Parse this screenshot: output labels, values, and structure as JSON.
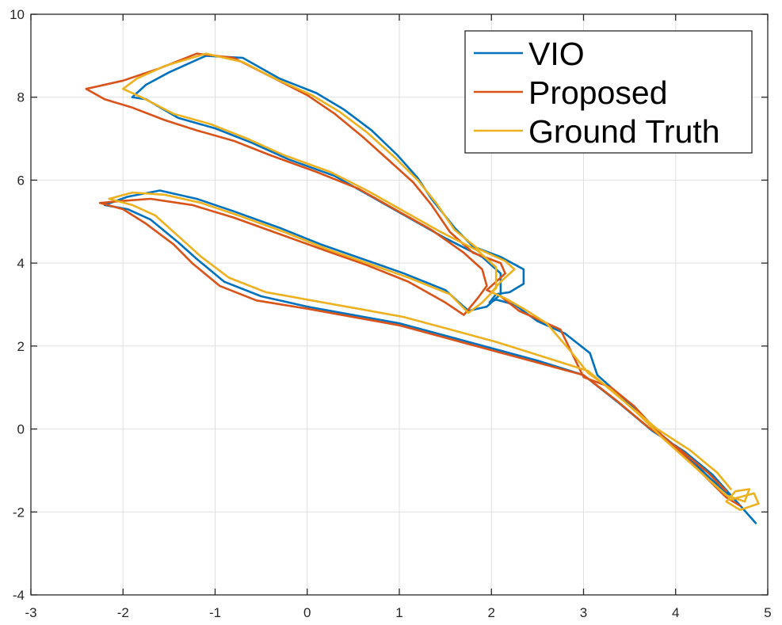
{
  "chart_data": {
    "type": "line",
    "title": "",
    "xlabel": "",
    "ylabel": "",
    "xlim": [
      -3,
      5
    ],
    "ylim": [
      -4,
      10
    ],
    "grid": true,
    "legend_position": "top-right",
    "x_ticks": [
      -3,
      -2,
      -1,
      0,
      1,
      2,
      3,
      4,
      5
    ],
    "y_ticks": [
      -4,
      -2,
      0,
      2,
      4,
      6,
      8,
      10
    ],
    "x_tick_labels": [
      "-3",
      "-2",
      "-1",
      "0",
      "1",
      "2",
      "3",
      "4",
      "5"
    ],
    "y_tick_labels": [
      "-4",
      "-2",
      "0",
      "2",
      "4",
      "6",
      "8",
      "10"
    ],
    "series": [
      {
        "name": "VIO",
        "color": "#0072BD",
        "points": [
          [
            4.87,
            -2.27
          ],
          [
            4.65,
            -1.72
          ],
          [
            4.38,
            -1.2
          ],
          [
            4.1,
            -0.6
          ],
          [
            3.85,
            -0.15
          ],
          [
            3.6,
            0.4
          ],
          [
            3.35,
            0.9
          ],
          [
            3.15,
            1.3
          ],
          [
            3.07,
            1.83
          ],
          [
            2.8,
            2.3
          ],
          [
            2.5,
            2.6
          ],
          [
            2.25,
            3.0
          ],
          [
            2.05,
            3.12
          ],
          [
            1.98,
            3.05
          ],
          [
            2.05,
            3.25
          ],
          [
            2.2,
            3.3
          ],
          [
            2.35,
            3.5
          ],
          [
            2.35,
            3.85
          ],
          [
            2.1,
            4.15
          ],
          [
            1.8,
            4.4
          ],
          [
            1.6,
            4.85
          ],
          [
            1.35,
            5.55
          ],
          [
            1.2,
            6.05
          ],
          [
            0.98,
            6.6
          ],
          [
            0.7,
            7.2
          ],
          [
            0.4,
            7.7
          ],
          [
            0.1,
            8.1
          ],
          [
            -0.3,
            8.45
          ],
          [
            -0.7,
            8.95
          ],
          [
            -1.1,
            9.0
          ],
          [
            -1.5,
            8.6
          ],
          [
            -1.75,
            8.3
          ],
          [
            -1.9,
            8.0
          ],
          [
            -1.75,
            7.95
          ],
          [
            -1.4,
            7.5
          ],
          [
            -1.0,
            7.25
          ],
          [
            -0.6,
            6.9
          ],
          [
            -0.2,
            6.5
          ],
          [
            0.3,
            6.1
          ],
          [
            0.7,
            5.6
          ],
          [
            1.1,
            5.1
          ],
          [
            1.5,
            4.6
          ],
          [
            1.9,
            4.15
          ],
          [
            2.1,
            3.75
          ],
          [
            2.1,
            3.25
          ],
          [
            1.95,
            2.95
          ],
          [
            1.75,
            2.85
          ],
          [
            1.5,
            3.35
          ],
          [
            1.05,
            3.75
          ],
          [
            0.6,
            4.1
          ],
          [
            0.15,
            4.45
          ],
          [
            -0.3,
            4.85
          ],
          [
            -0.8,
            5.25
          ],
          [
            -1.2,
            5.55
          ],
          [
            -1.6,
            5.75
          ],
          [
            -1.95,
            5.6
          ],
          [
            -2.2,
            5.4
          ],
          [
            -1.95,
            5.3
          ],
          [
            -1.7,
            5.05
          ],
          [
            -1.4,
            4.5
          ],
          [
            -1.2,
            4.1
          ],
          [
            -0.9,
            3.55
          ],
          [
            -0.5,
            3.2
          ],
          [
            0.0,
            2.95
          ],
          [
            0.5,
            2.75
          ],
          [
            1.0,
            2.55
          ],
          [
            1.5,
            2.25
          ],
          [
            2.0,
            1.95
          ],
          [
            2.5,
            1.65
          ],
          [
            3.0,
            1.3
          ],
          [
            3.4,
            0.6
          ],
          [
            3.75,
            -0.05
          ],
          [
            4.1,
            -0.55
          ],
          [
            4.4,
            -1.1
          ],
          [
            4.6,
            -1.6
          ]
        ]
      },
      {
        "name": "Proposed",
        "color": "#D95319",
        "points": [
          [
            4.7,
            -1.85
          ],
          [
            4.55,
            -1.65
          ],
          [
            4.3,
            -1.1
          ],
          [
            4.05,
            -0.55
          ],
          [
            3.8,
            -0.05
          ],
          [
            3.55,
            0.55
          ],
          [
            3.3,
            1.0
          ],
          [
            3.0,
            1.25
          ],
          [
            2.75,
            2.4
          ],
          [
            2.5,
            2.65
          ],
          [
            2.3,
            2.85
          ],
          [
            2.1,
            3.2
          ],
          [
            1.95,
            3.35
          ],
          [
            2.05,
            3.55
          ],
          [
            2.15,
            3.75
          ],
          [
            2.1,
            4.0
          ],
          [
            1.8,
            4.25
          ],
          [
            1.55,
            4.75
          ],
          [
            1.35,
            5.4
          ],
          [
            1.15,
            5.95
          ],
          [
            0.9,
            6.45
          ],
          [
            0.6,
            7.05
          ],
          [
            0.3,
            7.6
          ],
          [
            0.0,
            8.05
          ],
          [
            -0.4,
            8.5
          ],
          [
            -0.8,
            8.95
          ],
          [
            -1.2,
            9.05
          ],
          [
            -1.6,
            8.7
          ],
          [
            -2.0,
            8.4
          ],
          [
            -2.4,
            8.2
          ],
          [
            -2.2,
            7.95
          ],
          [
            -1.9,
            7.75
          ],
          [
            -1.55,
            7.45
          ],
          [
            -1.2,
            7.2
          ],
          [
            -0.8,
            6.95
          ],
          [
            -0.4,
            6.6
          ],
          [
            0.1,
            6.2
          ],
          [
            0.55,
            5.8
          ],
          [
            0.95,
            5.3
          ],
          [
            1.35,
            4.8
          ],
          [
            1.7,
            4.25
          ],
          [
            1.9,
            3.85
          ],
          [
            1.95,
            3.45
          ],
          [
            1.85,
            3.15
          ],
          [
            1.7,
            2.75
          ],
          [
            1.5,
            3.05
          ],
          [
            1.1,
            3.55
          ],
          [
            0.65,
            3.95
          ],
          [
            0.2,
            4.3
          ],
          [
            -0.3,
            4.7
          ],
          [
            -0.8,
            5.1
          ],
          [
            -1.25,
            5.4
          ],
          [
            -1.7,
            5.55
          ],
          [
            -2.0,
            5.5
          ],
          [
            -2.25,
            5.45
          ],
          [
            -2.0,
            5.3
          ],
          [
            -1.75,
            4.95
          ],
          [
            -1.45,
            4.45
          ],
          [
            -1.25,
            4.0
          ],
          [
            -0.95,
            3.45
          ],
          [
            -0.55,
            3.1
          ],
          [
            0.0,
            2.9
          ],
          [
            0.5,
            2.7
          ],
          [
            1.0,
            2.5
          ],
          [
            1.5,
            2.2
          ],
          [
            2.0,
            1.9
          ],
          [
            2.5,
            1.6
          ],
          [
            3.0,
            1.3
          ],
          [
            3.35,
            0.7
          ],
          [
            3.7,
            0.05
          ],
          [
            4.05,
            -0.5
          ],
          [
            4.35,
            -1.05
          ],
          [
            4.55,
            -1.5
          ]
        ]
      },
      {
        "name": "Ground Truth",
        "color": "#EDB120",
        "points": [
          [
            4.6,
            -1.7
          ],
          [
            4.85,
            -1.55
          ],
          [
            4.9,
            -1.8
          ],
          [
            4.7,
            -1.95
          ],
          [
            4.55,
            -1.75
          ],
          [
            4.65,
            -1.5
          ],
          [
            4.8,
            -1.45
          ],
          [
            4.75,
            -1.75
          ],
          [
            4.55,
            -1.6
          ],
          [
            4.35,
            -1.2
          ],
          [
            4.1,
            -0.7
          ],
          [
            3.85,
            -0.2
          ],
          [
            3.6,
            0.35
          ],
          [
            3.3,
            0.95
          ],
          [
            3.05,
            1.35
          ],
          [
            2.85,
            1.9
          ],
          [
            2.6,
            2.55
          ],
          [
            2.35,
            2.9
          ],
          [
            2.15,
            3.15
          ],
          [
            2.0,
            3.3
          ],
          [
            2.1,
            3.55
          ],
          [
            2.25,
            3.85
          ],
          [
            2.15,
            4.05
          ],
          [
            1.85,
            4.35
          ],
          [
            1.6,
            4.8
          ],
          [
            1.4,
            5.45
          ],
          [
            1.2,
            6.0
          ],
          [
            0.95,
            6.55
          ],
          [
            0.65,
            7.15
          ],
          [
            0.35,
            7.65
          ],
          [
            0.05,
            8.05
          ],
          [
            -0.35,
            8.45
          ],
          [
            -0.7,
            8.85
          ],
          [
            -1.1,
            9.05
          ],
          [
            -1.55,
            8.75
          ],
          [
            -1.85,
            8.45
          ],
          [
            -2.0,
            8.2
          ],
          [
            -1.8,
            8.0
          ],
          [
            -1.45,
            7.6
          ],
          [
            -1.05,
            7.35
          ],
          [
            -0.65,
            7.0
          ],
          [
            -0.25,
            6.6
          ],
          [
            0.25,
            6.2
          ],
          [
            0.65,
            5.75
          ],
          [
            1.05,
            5.25
          ],
          [
            1.45,
            4.75
          ],
          [
            1.85,
            4.3
          ],
          [
            2.05,
            3.9
          ],
          [
            2.05,
            3.4
          ],
          [
            1.9,
            3.05
          ],
          [
            1.75,
            2.8
          ],
          [
            1.55,
            3.25
          ],
          [
            1.1,
            3.65
          ],
          [
            0.65,
            4.0
          ],
          [
            0.2,
            4.35
          ],
          [
            -0.25,
            4.75
          ],
          [
            -0.75,
            5.15
          ],
          [
            -1.15,
            5.45
          ],
          [
            -1.55,
            5.65
          ],
          [
            -1.9,
            5.7
          ],
          [
            -2.15,
            5.55
          ],
          [
            -1.9,
            5.4
          ],
          [
            -1.65,
            5.15
          ],
          [
            -1.35,
            4.55
          ],
          [
            -1.15,
            4.15
          ],
          [
            -0.85,
            3.65
          ],
          [
            -0.45,
            3.3
          ],
          [
            0.05,
            3.1
          ],
          [
            0.55,
            2.9
          ],
          [
            1.05,
            2.7
          ],
          [
            1.55,
            2.4
          ],
          [
            2.05,
            2.1
          ],
          [
            2.55,
            1.75
          ],
          [
            3.05,
            1.4
          ],
          [
            3.45,
            0.65
          ],
          [
            3.8,
            0.0
          ],
          [
            4.15,
            -0.5
          ],
          [
            4.45,
            -1.05
          ],
          [
            4.6,
            -1.45
          ]
        ]
      }
    ]
  }
}
